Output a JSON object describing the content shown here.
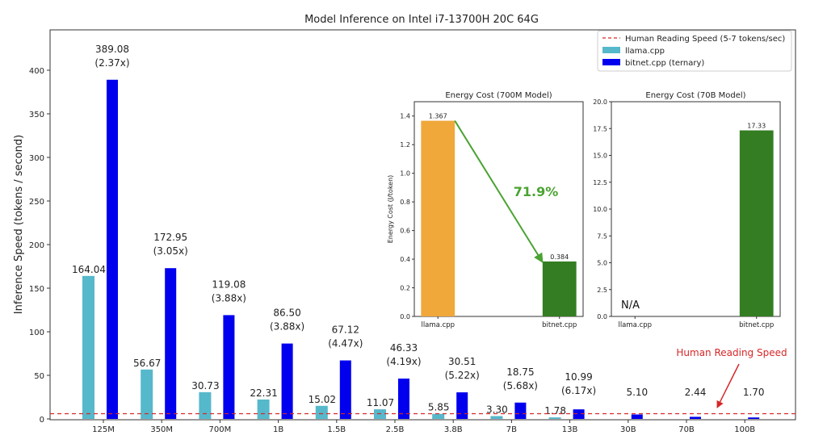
{
  "chart_data": [
    {
      "type": "bar",
      "title": "Model Inference on Intel i7-13700H 20C 64G",
      "xlabel": "",
      "ylabel": "Inference Speed (tokens / second)",
      "ylim": [
        0,
        440
      ],
      "yticks": [
        0,
        50,
        100,
        150,
        200,
        250,
        300,
        350,
        400
      ],
      "categories": [
        "125M",
        "350M",
        "700M",
        "1B",
        "1.5B",
        "2.5B",
        "3.8B",
        "7B",
        "13B",
        "30B",
        "70B",
        "100B"
      ],
      "series": [
        {
          "name": "llama.cpp",
          "color": "#56b8cb",
          "values": [
            164.04,
            56.67,
            30.73,
            22.31,
            15.02,
            11.07,
            5.85,
            3.3,
            1.78,
            null,
            null,
            null
          ],
          "labels": [
            "164.04",
            "56.67",
            "30.73",
            "22.31",
            "15.02",
            "11.07",
            "5.85",
            "3.30",
            "1.78",
            "",
            "",
            ""
          ]
        },
        {
          "name": "bitnet.cpp (ternary)",
          "color": "#0000ee",
          "values": [
            389.08,
            172.95,
            119.08,
            86.5,
            67.12,
            46.33,
            30.51,
            18.75,
            10.99,
            5.1,
            2.44,
            1.7
          ],
          "labels": [
            "389.08",
            "172.95",
            "119.08",
            "86.50",
            "67.12",
            "46.33",
            "30.51",
            "18.75",
            "10.99",
            "5.10",
            "2.44",
            "1.70"
          ],
          "speedups": [
            "(2.37x)",
            "(3.05x)",
            "(3.88x)",
            "(3.88x)",
            "(4.47x)",
            "(4.19x)",
            "(5.22x)",
            "(5.68x)",
            "(6.17x)",
            "",
            "",
            ""
          ]
        }
      ],
      "reference_line": {
        "name": "Human Reading Speed (5-7 tokens/sec)",
        "value": 6,
        "color": "#d62728"
      },
      "annotation": "Human Reading Speed",
      "legend_position": "top-right",
      "legend": [
        "Human Reading Speed (5-7 tokens/sec)",
        "llama.cpp",
        "bitnet.cpp (ternary)"
      ]
    },
    {
      "type": "bar",
      "title": "Energy Cost (700M Model)",
      "ylabel": "Energy Cost (J/token)",
      "ylim": [
        0,
        1.5
      ],
      "yticks": [
        "0.0",
        "0.2",
        "0.4",
        "0.6",
        "0.8",
        "1.0",
        "1.2",
        "1.4"
      ],
      "categories": [
        "llama.cpp",
        "bitnet.cpp"
      ],
      "values": [
        1.367,
        0.384
      ],
      "labels": [
        "1.367",
        "0.384"
      ],
      "colors": [
        "#f0a83a",
        "#347d22"
      ],
      "annotation": "71.9%"
    },
    {
      "type": "bar",
      "title": "Energy Cost (70B Model)",
      "ylim": [
        0,
        20
      ],
      "yticks": [
        "0.0",
        "2.5",
        "5.0",
        "7.5",
        "10.0",
        "12.5",
        "15.0",
        "17.5",
        "20.0"
      ],
      "categories": [
        "llama.cpp",
        "bitnet.cpp"
      ],
      "values": [
        null,
        17.33
      ],
      "labels": [
        "N/A",
        "17.33"
      ],
      "colors": [
        "#f0a83a",
        "#347d22"
      ]
    }
  ]
}
